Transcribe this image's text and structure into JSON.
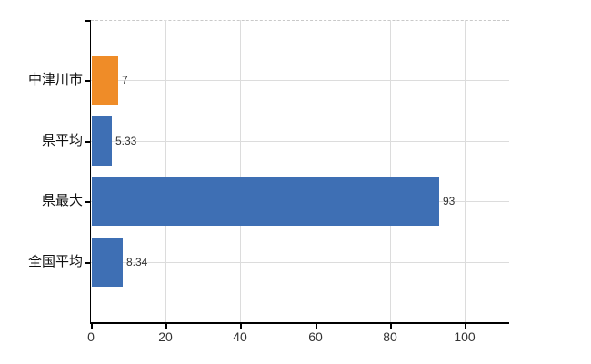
{
  "chart_data": {
    "type": "bar",
    "orientation": "horizontal",
    "title": "",
    "xlabel": "",
    "ylabel": "",
    "legend": "none",
    "grid": "on",
    "categories": [
      "中津川市",
      "県平均",
      "県最大",
      "全国平均"
    ],
    "values": [
      7,
      5.33,
      93,
      8.34
    ],
    "value_labels": [
      "7",
      "5.33",
      "93",
      "8.34"
    ],
    "bar_colors": [
      "#EF8C28",
      "#3E6FB4",
      "#3E6FB4",
      "#3E6FB4"
    ],
    "x_ticks": [
      0,
      20,
      40,
      60,
      80,
      100
    ],
    "x_tick_labels": [
      "0",
      "20",
      "40",
      "60",
      "80",
      "100"
    ],
    "xlim": [
      0,
      112
    ],
    "colors": {
      "bar_blue": "#3E6FB4",
      "bar_orange": "#EF8C28",
      "gridline": "#dcdcdc",
      "top_border_dashed": "#c9c9c9",
      "axis": "#000000",
      "value_text": "#333333",
      "category_text": "#111111",
      "background": "#ffffff"
    }
  }
}
